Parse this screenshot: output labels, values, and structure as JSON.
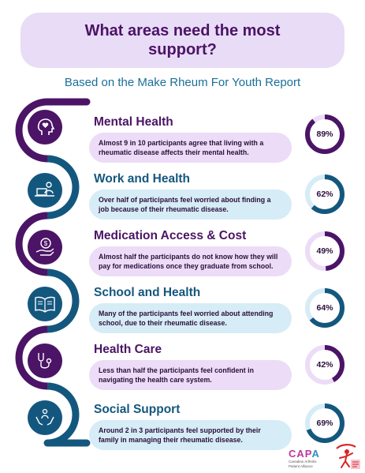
{
  "header": {
    "title": "What areas need the most support?",
    "subtitle": "Based on the Make Rheum For Youth Report"
  },
  "colors": {
    "purple": "#4b1466",
    "blue": "#14577e",
    "purple_light": "#ecdcf7",
    "blue_light": "#d6ecf6"
  },
  "sections": [
    {
      "title": "Mental Health",
      "text": "Almost 9 in 10 participants agree that living with a rheumatic disease affects their mental health.",
      "percent_label": "89%",
      "percent": 89,
      "icon": "head-heart-icon",
      "theme": "purple"
    },
    {
      "title": "Work and Health",
      "text": "Over half of participants feel worried about finding a job because of their rheumatic disease.",
      "percent_label": "62%",
      "percent": 62,
      "icon": "laptop-worker-icon",
      "theme": "blue"
    },
    {
      "title": "Medication Access & Cost",
      "text": "Almost half the participants do not know how they will pay for medications once they graduate from school.",
      "percent_label": "49%",
      "percent": 49,
      "icon": "hand-coin-icon",
      "theme": "purple"
    },
    {
      "title": "School and Health",
      "text": "Many of the participants feel worried about attending school, due to their rheumatic disease.",
      "percent_label": "64%",
      "percent": 64,
      "icon": "open-book-icon",
      "theme": "blue"
    },
    {
      "title": "Health Care",
      "text": "Less than half the participants feel confident in navigating the health care system.",
      "percent_label": "42%",
      "percent": 42,
      "icon": "stethoscope-icon",
      "theme": "purple"
    },
    {
      "title": "Social Support",
      "text": "Around 2 in 3 participants feel supported by their family in managing their rheumatic disease.",
      "percent_label": "69%",
      "percent": 69,
      "icon": "hands-holding-icon",
      "theme": "blue"
    }
  ],
  "logos": {
    "capa_prefix": "CAP",
    "capa_suffix": "A",
    "capa_subtitle_1": "Canadian Arthritis",
    "capa_subtitle_2": "Patient Alliance"
  }
}
